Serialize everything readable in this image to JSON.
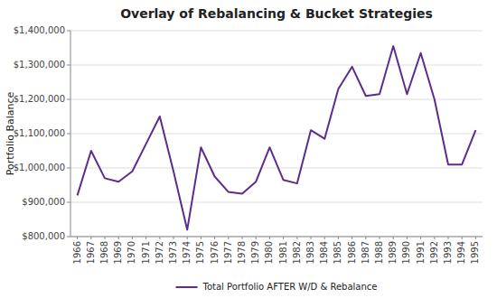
{
  "chart_data": {
    "type": "line",
    "title": "Overlay of Rebalancing & Bucket Strategies",
    "ylabel": "Portfolio Balance",
    "x": [
      1966,
      1967,
      1968,
      1969,
      1970,
      1971,
      1972,
      1973,
      1974,
      1975,
      1976,
      1977,
      1978,
      1979,
      1980,
      1981,
      1982,
      1983,
      1984,
      1985,
      1986,
      1987,
      1988,
      1989,
      1990,
      1991,
      1992,
      1993,
      1994,
      1995
    ],
    "series": [
      {
        "name": "Total Portfolio AFTER W/D & Rebalance",
        "color": "#5b2d8e",
        "values": [
          920000,
          1050000,
          970000,
          960000,
          990000,
          1070000,
          1150000,
          990000,
          820000,
          1060000,
          975000,
          930000,
          925000,
          960000,
          1060000,
          965000,
          955000,
          1110000,
          1085000,
          1230000,
          1295000,
          1210000,
          1215000,
          1355000,
          1215000,
          1335000,
          1200000,
          1010000,
          1010000,
          1110000
        ]
      }
    ],
    "xlim": [
      1965.5,
      1995.5
    ],
    "xticks": [
      1966,
      1967,
      1968,
      1969,
      1970,
      1971,
      1972,
      1973,
      1974,
      1975,
      1976,
      1977,
      1978,
      1979,
      1980,
      1981,
      1982,
      1983,
      1984,
      1985,
      1986,
      1987,
      1988,
      1989,
      1990,
      1991,
      1992,
      1993,
      1994,
      1995
    ],
    "ylim": [
      800000,
      1400000
    ],
    "yticks": [
      {
        "value": 800000,
        "label": "$800,000"
      },
      {
        "value": 900000,
        "label": "$900,000"
      },
      {
        "value": 1000000,
        "label": "$1,000,000"
      },
      {
        "value": 1100000,
        "label": "$1,100,000"
      },
      {
        "value": 1200000,
        "label": "$1,200,000"
      },
      {
        "value": 1300000,
        "label": "$1,300,000"
      },
      {
        "value": 1400000,
        "label": "$1,400,000"
      }
    ],
    "grid": true,
    "legend": "bottom"
  }
}
